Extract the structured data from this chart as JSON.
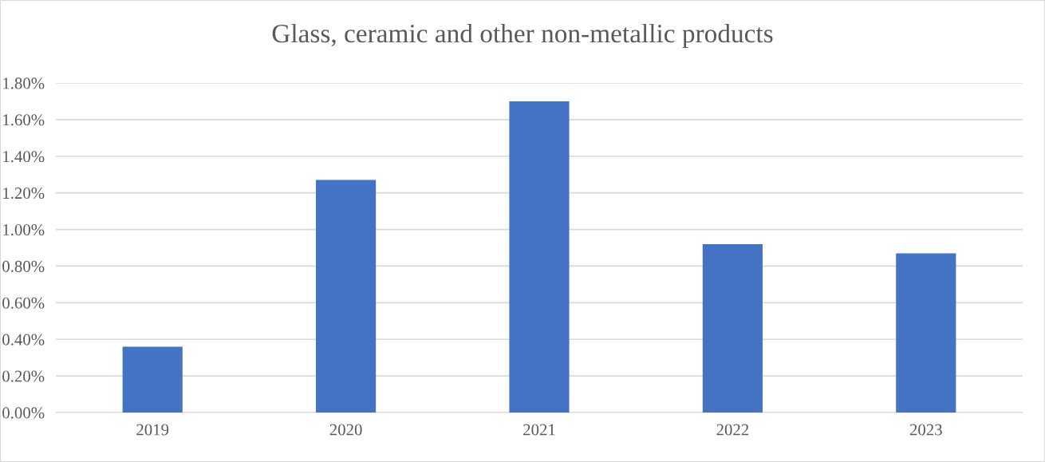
{
  "chart_data": {
    "type": "bar",
    "title": "Glass, ceramic and other non-metallic products",
    "categories": [
      "2019",
      "2020",
      "2021",
      "2022",
      "2023"
    ],
    "values": [
      0.36,
      1.27,
      1.7,
      0.92,
      0.87
    ],
    "color": "#4472c4",
    "ylim": [
      0,
      1.8
    ],
    "yticks": [
      {
        "value": 0,
        "label": "0.00%"
      },
      {
        "value": 0.2,
        "label": "0.20%"
      },
      {
        "value": 0.4,
        "label": "0.40%"
      },
      {
        "value": 0.6,
        "label": "0.60%"
      },
      {
        "value": 0.8,
        "label": "0.80%"
      },
      {
        "value": 1.0,
        "label": "1.00%"
      },
      {
        "value": 1.2,
        "label": "1.20%"
      },
      {
        "value": 1.4,
        "label": "1.40%"
      },
      {
        "value": 1.6,
        "label": "1.60%"
      },
      {
        "value": 1.8,
        "label": "1.80%"
      }
    ],
    "grid": "y"
  }
}
